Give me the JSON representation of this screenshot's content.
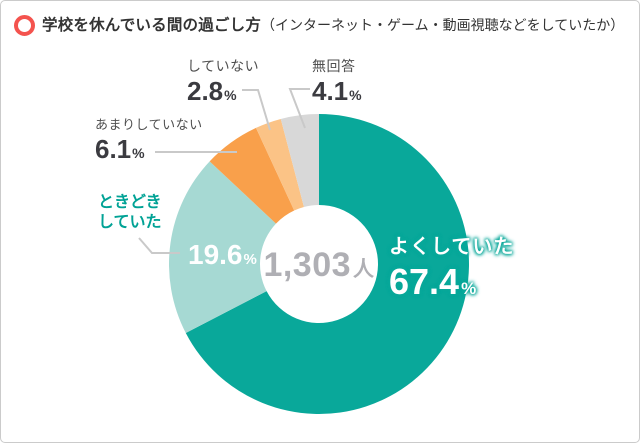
{
  "title": {
    "main": "学校を休んでいる間の過ごし方",
    "sub": "（インターネット・ゲーム・動画視聴などをしていたか）",
    "icon": "ring-icon",
    "icon_color": "#F4534E"
  },
  "center": {
    "value": "1,303",
    "unit": "人"
  },
  "units": {
    "percent": "%"
  },
  "colors": {
    "accent_teal": "#09A89A",
    "leader_line": "#C9C9C9",
    "label_text": "#4F4F4F",
    "number_text": "#3B3B40",
    "center_text": "#AFAFB4",
    "frame_border": "#CBCBCB"
  },
  "chart_data": {
    "type": "pie",
    "variant": "donut",
    "title": "学校を休んでいる間の過ごし方（インターネット・ゲーム・動画視聴などをしていたか）",
    "center_label": "1,303人",
    "start_angle": "12-oclock",
    "direction": "clockwise",
    "legend_position": "callouts",
    "segments": [
      {
        "id": "yoku-shiteita",
        "label": "よくしていた",
        "value": 67.4,
        "color": "#09A89A"
      },
      {
        "id": "tokidoki-shiteita",
        "label": "ときどきしていた",
        "value": 19.6,
        "color": "#A6D9D3"
      },
      {
        "id": "amari-shiteinai",
        "label": "あまりしていない",
        "value": 6.1,
        "color": "#F9A04B"
      },
      {
        "id": "shiteinai",
        "label": "していない",
        "value": 2.8,
        "color": "#FBC386"
      },
      {
        "id": "mukaitou",
        "label": "無回答",
        "value": 4.1,
        "color": "#D8D8D8"
      }
    ]
  }
}
